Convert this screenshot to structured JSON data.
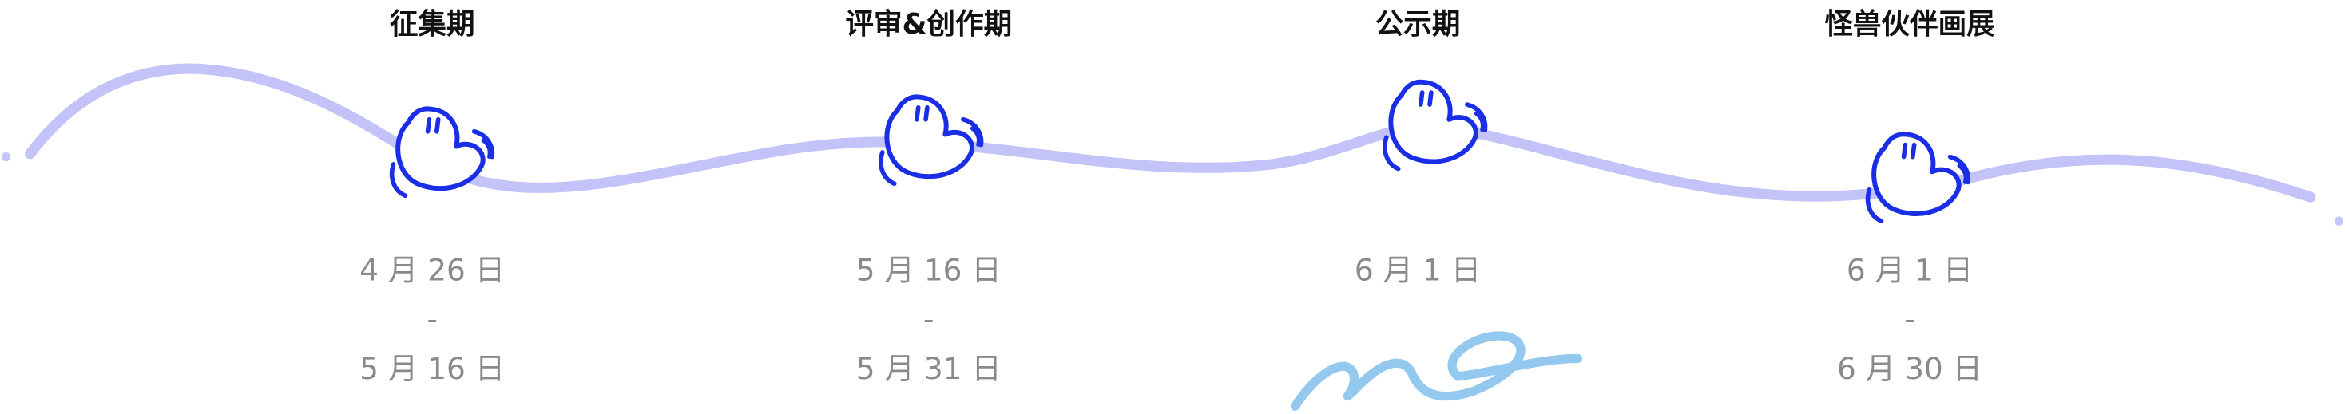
{
  "stages": [
    {
      "title": "征集期",
      "dates": [
        "4 月 26 日",
        "-",
        "5 月 16 日"
      ]
    },
    {
      "title": "评审&创作期",
      "dates": [
        "5 月 16 日",
        "-",
        "5 月 31 日"
      ]
    },
    {
      "title": "公示期",
      "dates": [
        "6 月 1 日"
      ]
    },
    {
      "title": "怪兽伙伴画展",
      "dates": [
        "6 月 1 日",
        "-",
        "6 月 30 日"
      ]
    }
  ]
}
